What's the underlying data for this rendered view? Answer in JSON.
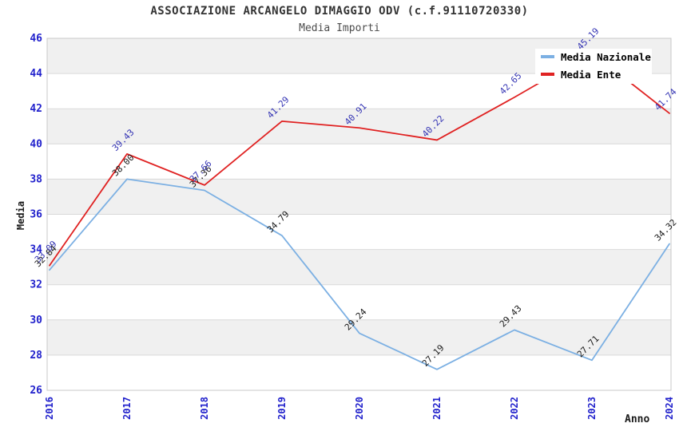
{
  "page": {
    "title": "ASSOCIAZIONE ARCANGELO DIMAGGIO ODV (c.f.91110720330)",
    "subtitle": "Media Importi"
  },
  "chart_data": {
    "type": "line",
    "title": "ASSOCIAZIONE ARCANGELO DIMAGGIO ODV (c.f.91110720330)",
    "subtitle": "Media Importi",
    "xlabel": "Anno",
    "ylabel": "Media",
    "categories": [
      "2016",
      "2017",
      "2018",
      "2019",
      "2020",
      "2021",
      "2022",
      "2023",
      "2024"
    ],
    "series": [
      {
        "name": "Media Nazionale",
        "color": "#7cb0e3",
        "label_color": "#1a1a1a",
        "values": [
          32.84,
          38.0,
          37.36,
          34.79,
          29.24,
          27.19,
          29.43,
          27.71,
          34.32
        ]
      },
      {
        "name": "Media Ente",
        "color": "#e02222",
        "label_color": "#3434b4",
        "values": [
          33.09,
          39.43,
          37.66,
          41.29,
          40.91,
          40.22,
          42.65,
          45.19,
          41.74
        ]
      }
    ],
    "ylim": [
      26,
      46
    ],
    "ytick_step": 2,
    "grid": true,
    "legend_position": "top-right",
    "value_decimals": 2,
    "colors": {
      "axis_tick": "#2222cc",
      "grid_line": "#d9d9d9",
      "band": "#f0f0f0",
      "plot_border": "#c8c8c8",
      "title": "#333333",
      "subtitle": "#4d4d4d",
      "axis_title": "#1a1a1a",
      "legend_text": "#000000",
      "legend_background": "#ffffff",
      "background": "#ffffff"
    }
  }
}
